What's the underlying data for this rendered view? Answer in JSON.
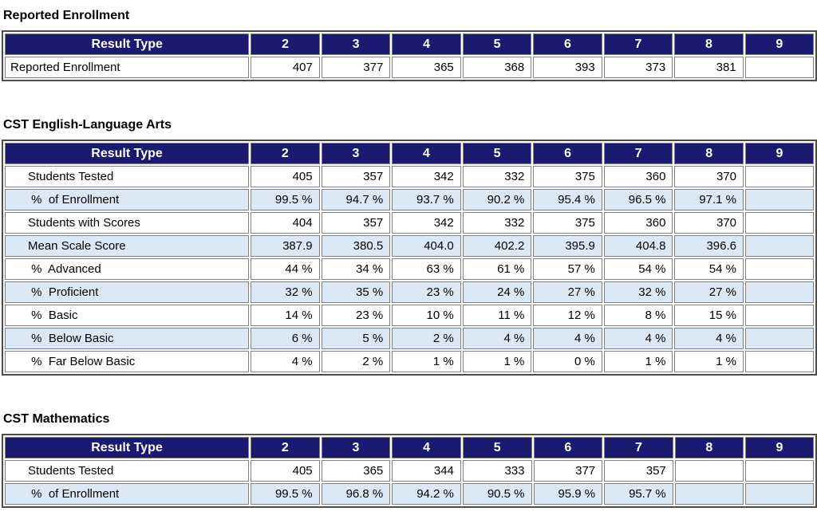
{
  "colors": {
    "header_bg": "#1a1a70",
    "header_text": "#ffffff",
    "row_alt_bg": "#dbe9f7",
    "cell_border": "#808080",
    "outer_border": "#4c4c4c",
    "text_color": "#000000",
    "page_bg": "#ffffff"
  },
  "header_label": "Result Type",
  "columns": [
    "2",
    "3",
    "4",
    "5",
    "6",
    "7",
    "8",
    "9"
  ],
  "tables": [
    {
      "title": "Reported Enrollment",
      "indent_labels": false,
      "rows": [
        {
          "label": "Reported Enrollment",
          "values": [
            "407",
            "377",
            "365",
            "368",
            "393",
            "373",
            "381",
            ""
          ]
        }
      ]
    },
    {
      "title": "CST English-Language Arts",
      "indent_labels": true,
      "rows": [
        {
          "label": "Students Tested",
          "values": [
            "405",
            "357",
            "342",
            "332",
            "375",
            "360",
            "370",
            ""
          ]
        },
        {
          "label": " %  of Enrollment",
          "values": [
            "99.5 %",
            "94.7 %",
            "93.7 %",
            "90.2 %",
            "95.4 %",
            "96.5 %",
            "97.1 %",
            ""
          ]
        },
        {
          "label": "Students with Scores",
          "values": [
            "404",
            "357",
            "342",
            "332",
            "375",
            "360",
            "370",
            ""
          ]
        },
        {
          "label": "Mean Scale Score",
          "values": [
            "387.9",
            "380.5",
            "404.0",
            "402.2",
            "395.9",
            "404.8",
            "396.6",
            ""
          ]
        },
        {
          "label": " %  Advanced",
          "values": [
            "44 %",
            "34 %",
            "63 %",
            "61 %",
            "57 %",
            "54 %",
            "54 %",
            ""
          ]
        },
        {
          "label": " %  Proficient",
          "values": [
            "32 %",
            "35 %",
            "23 %",
            "24 %",
            "27 %",
            "32 %",
            "27 %",
            ""
          ]
        },
        {
          "label": " %  Basic",
          "values": [
            "14 %",
            "23 %",
            "10 %",
            "11 %",
            "12 %",
            "8 %",
            "15 %",
            ""
          ]
        },
        {
          "label": " %  Below Basic",
          "values": [
            "6 %",
            "5 %",
            "2 %",
            "4 %",
            "4 %",
            "4 %",
            "4 %",
            ""
          ]
        },
        {
          "label": " %  Far Below Basic",
          "values": [
            "4 %",
            "2 %",
            "1 %",
            "1 %",
            "0 %",
            "1 %",
            "1 %",
            ""
          ]
        }
      ]
    },
    {
      "title": "CST Mathematics",
      "indent_labels": true,
      "rows": [
        {
          "label": "Students Tested",
          "values": [
            "405",
            "365",
            "344",
            "333",
            "377",
            "357",
            "",
            ""
          ]
        },
        {
          "label": " %  of Enrollment",
          "values": [
            "99.5 %",
            "96.8 %",
            "94.2 %",
            "90.5 %",
            "95.9 %",
            "95.7 %",
            "",
            ""
          ]
        }
      ]
    }
  ]
}
